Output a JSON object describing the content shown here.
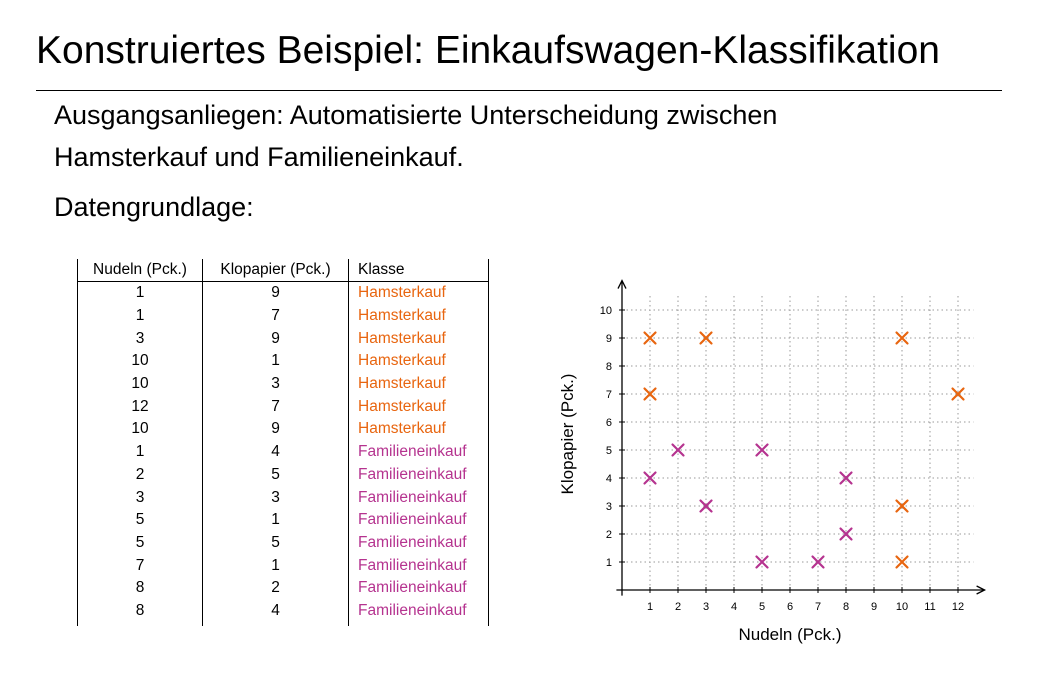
{
  "slide": {
    "title": "Konstruiertes Beispiel: Einkaufswagen-Klassifikation",
    "line1": "Ausgangsanliegen: Automatisierte Unterscheidung zwischen",
    "line2": "Hamsterkauf und Familieneinkauf.",
    "line3": "Datengrundlage:"
  },
  "colors": {
    "Hamsterkauf": "#e8650f",
    "Familieneinkauf": "#b5338f"
  },
  "table": {
    "headers": [
      "Nudeln (Pck.)",
      "Klopapier (Pck.)",
      "Klasse"
    ],
    "rows": [
      {
        "nudeln": "1",
        "klopapier": "9",
        "klasse": "Hamsterkauf"
      },
      {
        "nudeln": "1",
        "klopapier": "7",
        "klasse": "Hamsterkauf"
      },
      {
        "nudeln": "3",
        "klopapier": "9",
        "klasse": "Hamsterkauf"
      },
      {
        "nudeln": "10",
        "klopapier": "1",
        "klasse": "Hamsterkauf"
      },
      {
        "nudeln": "10",
        "klopapier": "3",
        "klasse": "Hamsterkauf"
      },
      {
        "nudeln": "12",
        "klopapier": "7",
        "klasse": "Hamsterkauf"
      },
      {
        "nudeln": "10",
        "klopapier": "9",
        "klasse": "Hamsterkauf"
      },
      {
        "nudeln": "1",
        "klopapier": "4",
        "klasse": "Familieneinkauf"
      },
      {
        "nudeln": "2",
        "klopapier": "5",
        "klasse": "Familieneinkauf"
      },
      {
        "nudeln": "3",
        "klopapier": "3",
        "klasse": "Familieneinkauf"
      },
      {
        "nudeln": "5",
        "klopapier": "1",
        "klasse": "Familieneinkauf"
      },
      {
        "nudeln": "5",
        "klopapier": "5",
        "klasse": "Familieneinkauf"
      },
      {
        "nudeln": "7",
        "klopapier": "1",
        "klasse": "Familieneinkauf"
      },
      {
        "nudeln": "8",
        "klopapier": "2",
        "klasse": "Familieneinkauf"
      },
      {
        "nudeln": "8",
        "klopapier": "4",
        "klasse": "Familieneinkauf"
      }
    ]
  },
  "chart_data": {
    "type": "scatter",
    "xlabel": "Nudeln (Pck.)",
    "ylabel": "Klopapier (Pck.)",
    "xlim": [
      0,
      12
    ],
    "ylim": [
      0,
      10
    ],
    "x_ticks": [
      "1",
      "2",
      "3",
      "4",
      "5",
      "6",
      "7",
      "8",
      "9",
      "10",
      "11",
      "12"
    ],
    "y_ticks": [
      "1",
      "2",
      "3",
      "4",
      "5",
      "6",
      "7",
      "8",
      "9",
      "10"
    ],
    "grid": true,
    "marker": "x",
    "series": [
      {
        "name": "Hamsterkauf",
        "x": [
          1,
          1,
          3,
          10,
          10,
          12,
          10
        ],
        "y": [
          9,
          7,
          9,
          1,
          3,
          7,
          9
        ]
      },
      {
        "name": "Familieneinkauf",
        "x": [
          1,
          2,
          3,
          5,
          5,
          7,
          8,
          8
        ],
        "y": [
          4,
          5,
          3,
          1,
          5,
          1,
          2,
          4
        ]
      }
    ]
  }
}
